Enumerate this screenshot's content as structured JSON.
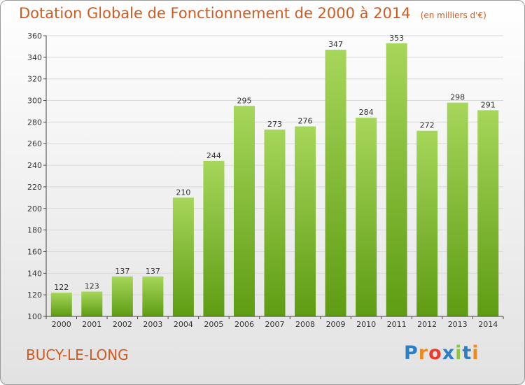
{
  "header": {
    "title": "Dotation Globale de Fonctionnement de 2000 à 2014",
    "unit": "(en milliers d'€)"
  },
  "footer": {
    "city": "BUCY-LE-LONG",
    "logo": "Proxiti",
    "logo_colors": [
      "#2d7fc4",
      "#f08a1c",
      "#e53c2e",
      "#2d7fc4",
      "#8cc63f",
      "#2d7fc4",
      "#f08a1c"
    ]
  },
  "colors": {
    "bar_top": "#a6d65a",
    "bar_bottom": "#5e9c13",
    "title": "#d35a1f",
    "grid": "#d8d8d8",
    "axis": "#444444"
  },
  "chart_data": {
    "type": "bar",
    "title": "Dotation Globale de Fonctionnement de 2000 à 2014",
    "subtitle": "(en milliers d'€)",
    "categories": [
      "2000",
      "2001",
      "2002",
      "2003",
      "2004",
      "2005",
      "2006",
      "2007",
      "2008",
      "2009",
      "2010",
      "2011",
      "2012",
      "2013",
      "2014"
    ],
    "values": [
      122,
      123,
      137,
      137,
      210,
      244,
      295,
      273,
      276,
      347,
      284,
      353,
      272,
      298,
      291
    ],
    "ylim": [
      100,
      360
    ],
    "yticks": [
      100,
      120,
      140,
      160,
      180,
      200,
      220,
      240,
      260,
      280,
      300,
      320,
      340,
      360
    ],
    "grid": true
  }
}
